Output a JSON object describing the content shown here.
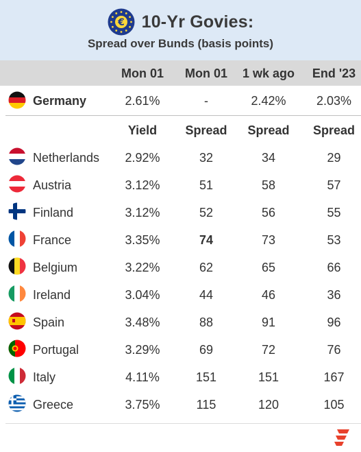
{
  "header": {
    "title": "10-Yr Govies:",
    "subtitle": "Spread over Bunds (basis points)",
    "logo_icon": "euro-symbol-eu-stars-icon"
  },
  "columns": [
    "Mon 01",
    "Mon 01",
    "1 wk ago",
    "End '23"
  ],
  "germany": {
    "name": "Germany",
    "flag": "flag-germany-icon",
    "values": [
      "2.61%",
      "-",
      "2.42%",
      "2.03%"
    ]
  },
  "subheader": [
    "Yield",
    "Spread",
    "Spread",
    "Spread"
  ],
  "chart_data": {
    "type": "table",
    "title": "10-Yr Govies:",
    "subtitle": "Spread over Bunds (basis points)",
    "columns": [
      "Yield",
      "Spread",
      "Spread",
      "Spread"
    ],
    "column_dates": [
      "Mon 01",
      "Mon 01",
      "1 wk ago",
      "End '23"
    ],
    "rows": [
      {
        "country": "Netherlands",
        "yield": "2.92%",
        "spread": "32",
        "spread_1wk": "34",
        "spread_end23": "29",
        "flag": "flag-netherlands-icon"
      },
      {
        "country": "Austria",
        "yield": "3.12%",
        "spread": "51",
        "spread_1wk": "58",
        "spread_end23": "57",
        "flag": "flag-austria-icon"
      },
      {
        "country": "Finland",
        "yield": "3.12%",
        "spread": "52",
        "spread_1wk": "56",
        "spread_end23": "55",
        "flag": "flag-finland-icon"
      },
      {
        "country": "France",
        "yield": "3.35%",
        "spread": "74",
        "spread_1wk": "73",
        "spread_end23": "53",
        "flag": "flag-france-icon",
        "highlight": true
      },
      {
        "country": "Belgium",
        "yield": "3.22%",
        "spread": "62",
        "spread_1wk": "65",
        "spread_end23": "66",
        "flag": "flag-belgium-icon"
      },
      {
        "country": "Ireland",
        "yield": "3.04%",
        "spread": "44",
        "spread_1wk": "46",
        "spread_end23": "36",
        "flag": "flag-ireland-icon"
      },
      {
        "country": "Spain",
        "yield": "3.48%",
        "spread": "88",
        "spread_1wk": "91",
        "spread_end23": "96",
        "flag": "flag-spain-icon"
      },
      {
        "country": "Portugal",
        "yield": "3.29%",
        "spread": "69",
        "spread_1wk": "72",
        "spread_end23": "76",
        "flag": "flag-portugal-icon"
      },
      {
        "country": "Italy",
        "yield": "4.11%",
        "spread": "151",
        "spread_1wk": "151",
        "spread_end23": "167",
        "flag": "flag-italy-icon"
      },
      {
        "country": "Greece",
        "yield": "3.75%",
        "spread": "115",
        "spread_1wk": "120",
        "spread_end23": "105",
        "flag": "flag-greece-icon"
      }
    ]
  },
  "colors": {
    "header_bg": "#dde9f6",
    "column_header_bg": "#d9d9d9",
    "brand_red": "#e8412c"
  },
  "footer": {
    "brand_icon": "brand-logo-icon"
  }
}
